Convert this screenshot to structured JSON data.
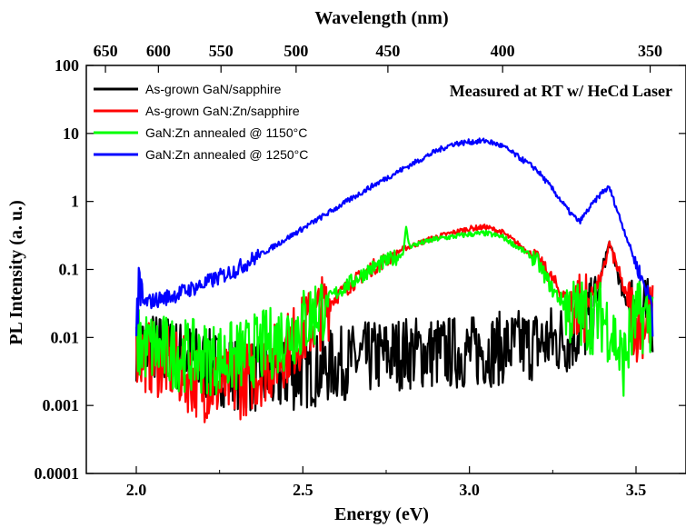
{
  "chart_data": {
    "type": "line",
    "xlabel": "Energy (eV)",
    "ylabel": "PL Intensity (a. u.)",
    "x2label": "Wavelength (nm)",
    "yscale": "log",
    "xlim": [
      1.85,
      3.65
    ],
    "ylim": [
      0.0001,
      100
    ],
    "x_ticks": [
      2.0,
      2.5,
      3.0,
      3.5
    ],
    "x_tick_labels": [
      "2.0",
      "2.5",
      "3.0",
      "3.5"
    ],
    "y_ticks": [
      0.0001,
      0.001,
      0.01,
      0.1,
      1,
      10,
      100
    ],
    "y_tick_labels": [
      "0.0001",
      "0.001",
      "0.01",
      "0.1",
      "1",
      "10",
      "100"
    ],
    "x2_ticks_nm": [
      650,
      600,
      550,
      500,
      450,
      400,
      350
    ],
    "x2_tick_labels": [
      "650",
      "600",
      "550",
      "500",
      "450",
      "400",
      "350"
    ],
    "annotation": "Measured at RT w/ HeCd Laser",
    "legend_position": "top-left",
    "grid": false,
    "series": [
      {
        "name": "As-grown GaN/sapphire",
        "color": "#000000",
        "x": [
          2.0,
          2.1,
          2.2,
          2.3,
          2.4,
          2.5,
          2.6,
          2.7,
          2.8,
          2.9,
          3.0,
          3.1,
          3.2,
          3.3,
          3.35,
          3.38,
          3.4,
          3.42,
          3.44,
          3.46,
          3.5,
          3.55
        ],
        "values": [
          0.008,
          0.006,
          0.004,
          0.003,
          0.0025,
          0.003,
          0.004,
          0.005,
          0.006,
          0.006,
          0.006,
          0.007,
          0.008,
          0.01,
          0.015,
          0.03,
          0.1,
          0.25,
          0.12,
          0.04,
          0.025,
          0.02
        ]
      },
      {
        "name": "As-grown GaN:Zn/sapphire",
        "color": "#ff0000",
        "x": [
          2.0,
          2.1,
          2.2,
          2.3,
          2.4,
          2.5,
          2.6,
          2.7,
          2.8,
          2.9,
          3.0,
          3.05,
          3.1,
          3.2,
          3.25,
          3.3,
          3.35,
          3.4,
          3.42,
          3.44,
          3.47,
          3.5,
          3.55
        ],
        "values": [
          0.006,
          0.004,
          0.002,
          0.002,
          0.004,
          0.012,
          0.04,
          0.1,
          0.2,
          0.3,
          0.4,
          0.42,
          0.35,
          0.15,
          0.07,
          0.03,
          0.03,
          0.08,
          0.25,
          0.12,
          0.04,
          0.015,
          0.02
        ]
      },
      {
        "name": "GaN:Zn annealed @ 1150°C",
        "color": "#00ff00",
        "x": [
          2.0,
          2.1,
          2.2,
          2.3,
          2.4,
          2.5,
          2.6,
          2.7,
          2.8,
          2.81,
          2.82,
          2.9,
          3.0,
          3.05,
          3.1,
          3.2,
          3.25,
          3.3,
          3.35,
          3.4,
          3.43,
          3.46,
          3.5,
          3.55
        ],
        "values": [
          0.008,
          0.006,
          0.005,
          0.005,
          0.008,
          0.016,
          0.045,
          0.1,
          0.17,
          0.4,
          0.22,
          0.28,
          0.33,
          0.34,
          0.3,
          0.14,
          0.05,
          0.025,
          0.02,
          0.02,
          0.012,
          0.004,
          0.02,
          0.02
        ]
      },
      {
        "name": "GaN:Zn annealed @ 1250°C",
        "color": "#0000ff",
        "x": [
          2.0,
          2.1,
          2.2,
          2.3,
          2.4,
          2.5,
          2.6,
          2.7,
          2.8,
          2.9,
          2.95,
          3.0,
          3.05,
          3.1,
          3.2,
          3.25,
          3.3,
          3.33,
          3.36,
          3.4,
          3.42,
          3.45,
          3.5,
          3.55
        ],
        "values": [
          0.03,
          0.04,
          0.06,
          0.1,
          0.2,
          0.4,
          0.8,
          1.6,
          3.0,
          5.5,
          7.0,
          7.5,
          7.8,
          6.5,
          3.0,
          1.5,
          0.7,
          0.5,
          0.8,
          1.4,
          1.6,
          0.6,
          0.12,
          0.03
        ]
      }
    ]
  }
}
